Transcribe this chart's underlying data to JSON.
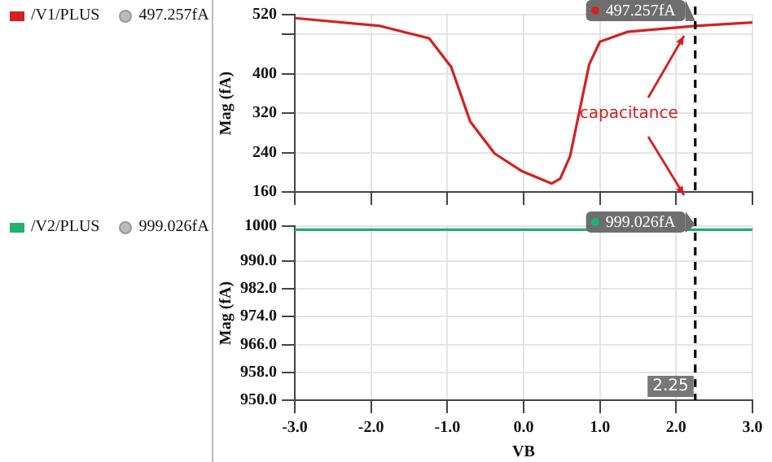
{
  "chart_data": [
    {
      "type": "line",
      "ylabel": "Mag (fA)",
      "legend": "left",
      "grid": true,
      "tick_labels": "y",
      "marker": "none",
      "xlim": [
        -3,
        3
      ],
      "xticks": [
        -3,
        -2,
        -1,
        0,
        1,
        2,
        3
      ],
      "ylim": [
        160,
        520
      ],
      "yticks": [
        160,
        240,
        320,
        400,
        {
          "value": 480,
          "label": null
        },
        520
      ],
      "series": [
        {
          "name": "/V1/PLUS",
          "color": "#d42020",
          "x": [
            -3,
            -1.88,
            -1.24,
            -0.95,
            -0.7,
            -0.38,
            -0.02,
            0.37,
            0.48,
            0.61,
            0.86,
            1.0,
            1.36,
            2.25,
            3.0
          ],
          "values": [
            513,
            497,
            472,
            414,
            303,
            238,
            202,
            177,
            187,
            233,
            419,
            465,
            485,
            497,
            504
          ]
        }
      ],
      "ref_lines": [
        {
          "axis": "x",
          "value": 2.25,
          "color": "#000000",
          "line_style": "dashed"
        }
      ],
      "annotations": [
        {
          "text": "497.257fA",
          "x": 2.25,
          "y": 497.257
        },
        "capacitance"
      ]
    },
    {
      "type": "line",
      "xlabel": "VB",
      "ylabel": "Mag (fA)",
      "legend": "left",
      "grid": true,
      "marker": "none",
      "xlim": [
        -3,
        3
      ],
      "xticks": [
        {
          "value": -3,
          "label": "-3.0"
        },
        {
          "value": -2,
          "label": "-2.0"
        },
        {
          "value": -1,
          "label": "-1.0"
        },
        {
          "value": 0,
          "label": "0.0"
        },
        {
          "value": 1,
          "label": "1.0"
        },
        {
          "value": 2,
          "label": "2.0"
        },
        {
          "value": 3,
          "label": "3.0"
        }
      ],
      "ylim": [
        950,
        1000
      ],
      "yticks": [
        {
          "value": 950,
          "label": "950.0"
        },
        {
          "value": 958,
          "label": "958.0"
        },
        {
          "value": 966,
          "label": "966.0"
        },
        {
          "value": 974,
          "label": "974.0"
        },
        {
          "value": 982,
          "label": "982.0"
        },
        {
          "value": 990,
          "label": "990.0"
        },
        1000
      ],
      "series": [
        {
          "name": "/V2/PLUS",
          "color": "#20b070",
          "x": [
            -3,
            3
          ],
          "values": [
            999,
            999
          ]
        }
      ],
      "ref_lines": [
        {
          "axis": "x",
          "value": 2.25,
          "color": "#000000",
          "line_style": "dashed",
          "label": "2.25"
        }
      ],
      "annotations": [
        {
          "text": "999.026fA",
          "x": 2.25,
          "y": 999.026
        }
      ]
    }
  ]
}
